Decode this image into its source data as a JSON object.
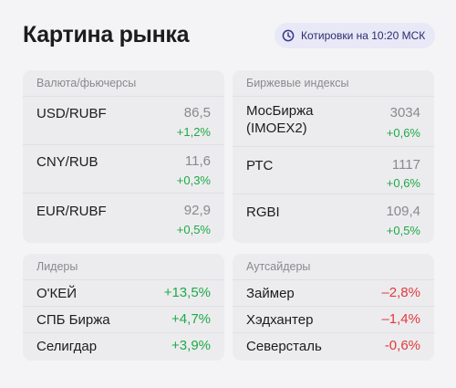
{
  "title": "Картина рынка",
  "quote_badge": {
    "icon": "clock-icon",
    "label": "Котировки на 10:20 МСК"
  },
  "currency_panel": {
    "header": "Валюта/фьючерсы",
    "rows": [
      {
        "name": "USD/RUBF",
        "price": "86,5",
        "change": "+1,2%"
      },
      {
        "name": "CNY/RUB",
        "price": "11,6",
        "change": "+0,3%"
      },
      {
        "name": "EUR/RUBF",
        "price": "92,9",
        "change": "+0,5%"
      }
    ]
  },
  "index_panel": {
    "header": "Биржевые индексы",
    "rows": [
      {
        "name_line1": "МосБиржа",
        "name_line2": "(IMOEX2)",
        "price": "3034",
        "change": "+0,6%"
      },
      {
        "name": "РТС",
        "price": "1117",
        "change": "+0,6%"
      },
      {
        "name": "RGBI",
        "price": "109,4",
        "change": "+0,5%"
      }
    ]
  },
  "leaders_panel": {
    "header": "Лидеры",
    "rows": [
      {
        "name": "О'КЕЙ",
        "change": "+13,5%"
      },
      {
        "name": "СПБ Биржа",
        "change": "+4,7%"
      },
      {
        "name": "Селигдар",
        "change": "+3,9%"
      }
    ]
  },
  "outsiders_panel": {
    "header": "Аутсайдеры",
    "rows": [
      {
        "name": "Займер",
        "change": "–2,8%"
      },
      {
        "name": "Хэдхантер",
        "change": "–1,4%"
      },
      {
        "name": "Северсталь",
        "change": "-0,6%"
      }
    ]
  },
  "colors": {
    "positive": "#1eaa46",
    "negative": "#e03a3a",
    "badge_bg": "#e8e8f7",
    "badge_text": "#2c2c6e"
  }
}
